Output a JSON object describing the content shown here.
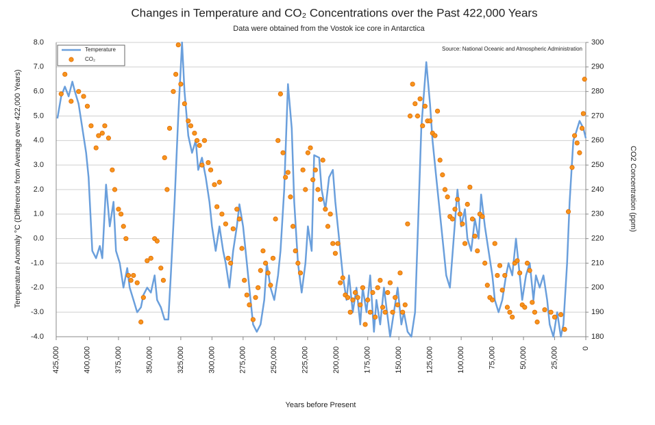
{
  "chart_data": {
    "type": "line",
    "title": "Changes in Temperature and CO₂ Concentrations over the Past 422,000 Years",
    "subtitle": "Data were obtained from the Vostok ice core in Antarctica",
    "annotation": "Source: National Oceanic and Atmospheric Administration",
    "x_label": "Years before Present",
    "y_label": "Temperature Anomaly °C (Difference from Average over 422,000 Years)",
    "y2_label": "CO2 Concentration (ppm)",
    "xlim": [
      425000,
      0
    ],
    "xticks": [
      {
        "value": 425000,
        "label": "425,000"
      },
      {
        "value": 400000,
        "label": "400,000"
      },
      {
        "value": 375000,
        "label": "375,000"
      },
      {
        "value": 350000,
        "label": "350,000"
      },
      {
        "value": 325000,
        "label": "325,000"
      },
      {
        "value": 300000,
        "label": "300,000"
      },
      {
        "value": 275000,
        "label": "275,000"
      },
      {
        "value": 250000,
        "label": "250,000"
      },
      {
        "value": 225000,
        "label": "225,000"
      },
      {
        "value": 200000,
        "label": "200,000"
      },
      {
        "value": 175000,
        "label": "175,000"
      },
      {
        "value": 150000,
        "label": "150,000"
      },
      {
        "value": 125000,
        "label": "125,000"
      },
      {
        "value": 100000,
        "label": "100,000"
      },
      {
        "value": 75000,
        "label": "75,000"
      },
      {
        "value": 50000,
        "label": "50,000"
      },
      {
        "value": 25000,
        "label": "25,000"
      },
      0
    ],
    "ylim": [
      -4,
      8
    ],
    "yticks": [
      {
        "value": 8,
        "label": "8.0"
      },
      {
        "value": 7,
        "label": "7.0"
      },
      {
        "value": 6,
        "label": "6.0"
      },
      {
        "value": 5,
        "label": "5.0"
      },
      {
        "value": 4,
        "label": "4.0"
      },
      {
        "value": 3,
        "label": "3.0"
      },
      {
        "value": 2,
        "label": "2.0"
      },
      {
        "value": 1,
        "label": "1.0"
      },
      {
        "value": 0,
        "label": "0.0"
      },
      {
        "value": -1,
        "label": "-1.0"
      },
      {
        "value": -2,
        "label": "-2.0"
      },
      {
        "value": -3,
        "label": "-3.0"
      },
      {
        "value": -4,
        "label": "-4.0"
      }
    ],
    "y2lim": [
      180,
      300
    ],
    "y2ticks": [
      300,
      290,
      280,
      270,
      260,
      250,
      240,
      230,
      220,
      210,
      200,
      190,
      180
    ],
    "grid": true,
    "legend": "top-left",
    "series": [
      {
        "name": "Temperature",
        "type": "line",
        "color": "#6a9fdc",
        "x": [
          424000,
          421000,
          418000,
          415000,
          412000,
          410000,
          407000,
          404000,
          401000,
          399000,
          396000,
          393000,
          390000,
          388000,
          385000,
          382000,
          379000,
          377000,
          374000,
          371000,
          368000,
          366000,
          363000,
          360000,
          357000,
          355000,
          352000,
          349000,
          346000,
          344000,
          341000,
          338000,
          335000,
          333000,
          330000,
          327000,
          324000,
          322000,
          319000,
          316000,
          313000,
          311000,
          308000,
          305000,
          302000,
          300000,
          297000,
          294000,
          291000,
          289000,
          286000,
          283000,
          280000,
          278000,
          275000,
          272000,
          269000,
          267000,
          264000,
          261000,
          258000,
          256000,
          253000,
          250000,
          247000,
          245000,
          242000,
          239000,
          236000,
          234000,
          231000,
          228000,
          225000,
          223000,
          220000,
          218000,
          214000,
          212000,
          209000,
          206000,
          203000,
          201000,
          198000,
          195000,
          192000,
          190000,
          187000,
          184000,
          181000,
          179000,
          176000,
          173000,
          170000,
          168000,
          165000,
          162000,
          159000,
          157000,
          154000,
          151000,
          148000,
          146000,
          143000,
          140000,
          137000,
          135000,
          132000,
          128000,
          125000,
          123000,
          120000,
          117000,
          114000,
          112000,
          109000,
          106000,
          103000,
          100000,
          97000,
          95000,
          92000,
          89000,
          86000,
          84000,
          81000,
          78000,
          75000,
          73000,
          70000,
          67000,
          64000,
          62000,
          59000,
          56000,
          53000,
          51000,
          48000,
          45000,
          42000,
          40000,
          37000,
          34000,
          31000,
          29000,
          26000,
          23000,
          20000,
          18000,
          15000,
          13000,
          10000,
          8000,
          5000,
          2000,
          0
        ],
        "values": [
          4.9,
          5.8,
          6.2,
          5.8,
          6.4,
          6.0,
          5.5,
          4.5,
          3.5,
          2.5,
          -0.5,
          -0.8,
          -0.3,
          -0.8,
          2.2,
          0.5,
          1.5,
          -0.5,
          -1.0,
          -2.0,
          -1.2,
          -2.0,
          -2.5,
          -3.0,
          -2.8,
          -2.3,
          -2.0,
          -2.2,
          -1.5,
          -2.5,
          -2.8,
          -3.3,
          -3.3,
          -1.5,
          1.5,
          5.0,
          8.0,
          6.0,
          4.2,
          3.5,
          4.0,
          2.8,
          3.3,
          2.5,
          1.5,
          0.5,
          -0.5,
          0.5,
          -0.5,
          -1.0,
          -2.0,
          -0.5,
          0.5,
          1.4,
          0.5,
          -1.0,
          -2.5,
          -3.5,
          -3.8,
          -3.5,
          -2.5,
          -1.0,
          -2.0,
          -2.5,
          -1.5,
          -0.5,
          2.0,
          6.3,
          4.5,
          1.5,
          -1.0,
          -2.2,
          -1.0,
          0.5,
          -0.5,
          3.4,
          3.3,
          2.0,
          1.2,
          2.5,
          2.8,
          1.5,
          0.0,
          -1.5,
          -2.5,
          -1.5,
          -3.0,
          -2.0,
          -3.5,
          -2.0,
          -3.0,
          -1.5,
          -3.8,
          -2.5,
          -3.5,
          -2.0,
          -3.2,
          -4.0,
          -3.0,
          -2.0,
          -3.5,
          -3.0,
          -3.8,
          -4.0,
          -3.0,
          0.0,
          4.5,
          7.2,
          5.5,
          4.0,
          2.5,
          1.0,
          -0.5,
          -1.5,
          -2.0,
          0.0,
          2.0,
          0.5,
          1.2,
          0.0,
          -0.5,
          0.8,
          0.0,
          1.8,
          0.5,
          -0.5,
          -1.5,
          -2.5,
          -3.0,
          -2.5,
          -1.5,
          -1.0,
          -1.5,
          0.0,
          -1.5,
          -2.5,
          -1.5,
          -1.0,
          -2.5,
          -1.5,
          -2.0,
          -1.5,
          -2.5,
          -3.5,
          -4.0,
          -3.0,
          -4.0,
          -3.5,
          -1.0,
          1.5,
          4.0,
          4.3,
          4.8,
          4.5,
          4.1
        ]
      },
      {
        "name": "CO₂",
        "type": "scatter",
        "axis": "y2",
        "color": "#f7941d",
        "x": [
          421000,
          418000,
          413000,
          407000,
          403000,
          400000,
          397000,
          393000,
          391000,
          388000,
          386000,
          383000,
          380000,
          378000,
          375000,
          373000,
          371000,
          369000,
          367000,
          365000,
          363000,
          360000,
          357000,
          355000,
          352000,
          349000,
          346000,
          344000,
          341000,
          339000,
          338000,
          336000,
          334000,
          331000,
          329000,
          327000,
          325000,
          322000,
          319000,
          317000,
          314000,
          312000,
          310000,
          308000,
          306000,
          303000,
          301000,
          298000,
          296000,
          294000,
          292000,
          289000,
          287000,
          285000,
          283000,
          280000,
          278000,
          276000,
          274000,
          272000,
          270000,
          267000,
          265000,
          263000,
          261000,
          259000,
          257000,
          255000,
          253000,
          251000,
          249000,
          247000,
          245000,
          243000,
          241000,
          239000,
          237000,
          235000,
          233000,
          231000,
          229000,
          227000,
          225000,
          223000,
          221000,
          219000,
          217000,
          215000,
          213000,
          211000,
          209000,
          207000,
          205000,
          203000,
          201000,
          199000,
          197000,
          195000,
          193000,
          191000,
          189000,
          187000,
          185000,
          183000,
          181000,
          179000,
          177000,
          175000,
          173000,
          171000,
          169000,
          167000,
          165000,
          163000,
          161000,
          159000,
          157000,
          155000,
          153000,
          151000,
          149000,
          147000,
          145000,
          143000,
          141000,
          139000,
          137000,
          135000,
          133000,
          131000,
          129000,
          127000,
          125000,
          123000,
          121000,
          119000,
          117000,
          115000,
          113000,
          111000,
          109000,
          107000,
          105000,
          103000,
          101000,
          99000,
          97000,
          95000,
          93000,
          91000,
          89000,
          87000,
          85000,
          83000,
          81000,
          79000,
          77000,
          75000,
          73000,
          71000,
          69000,
          67000,
          65000,
          63000,
          61000,
          59000,
          57000,
          55000,
          53000,
          51000,
          49000,
          47000,
          45000,
          43000,
          41000,
          39000,
          33000,
          28000,
          25000,
          20000,
          17000,
          14000,
          11000,
          9000,
          7000,
          5000,
          3000,
          2000,
          1000
        ],
        "values": [
          279,
          287,
          276,
          280,
          278,
          274,
          266,
          257,
          262,
          263,
          266,
          261,
          248,
          240,
          232,
          230,
          225,
          220,
          205,
          203,
          205,
          202,
          186,
          196,
          211,
          212,
          220,
          219,
          208,
          203,
          253,
          240,
          265,
          280,
          287,
          299,
          283,
          275,
          268,
          266,
          263,
          260,
          258,
          250,
          260,
          251,
          248,
          242,
          233,
          243,
          230,
          226,
          212,
          210,
          224,
          232,
          228,
          216,
          203,
          197,
          193,
          187,
          196,
          200,
          207,
          215,
          210,
          206,
          201,
          212,
          228,
          260,
          279,
          255,
          245,
          247,
          237,
          225,
          215,
          210,
          206,
          248,
          240,
          255,
          257,
          244,
          248,
          240,
          236,
          252,
          232,
          225,
          230,
          218,
          214,
          218,
          202,
          204,
          197,
          196,
          190,
          195,
          198,
          196,
          193,
          200,
          185,
          195,
          190,
          198,
          188,
          200,
          203,
          192,
          190,
          198,
          202,
          190,
          196,
          193,
          206,
          190,
          193,
          226,
          270,
          283,
          275,
          270,
          277,
          266,
          274,
          268,
          268,
          263,
          262,
          272,
          252,
          246,
          240,
          237,
          229,
          228,
          232,
          236,
          230,
          226,
          218,
          234,
          241,
          228,
          221,
          215,
          230,
          229,
          210,
          201,
          196,
          195,
          218,
          205,
          209,
          199,
          205,
          192,
          190,
          188,
          210,
          211,
          206,
          193,
          192,
          210,
          207,
          194,
          190,
          186,
          191,
          190,
          188,
          189,
          183,
          231,
          249,
          262,
          259,
          255,
          265,
          271,
          285
        ]
      }
    ]
  }
}
